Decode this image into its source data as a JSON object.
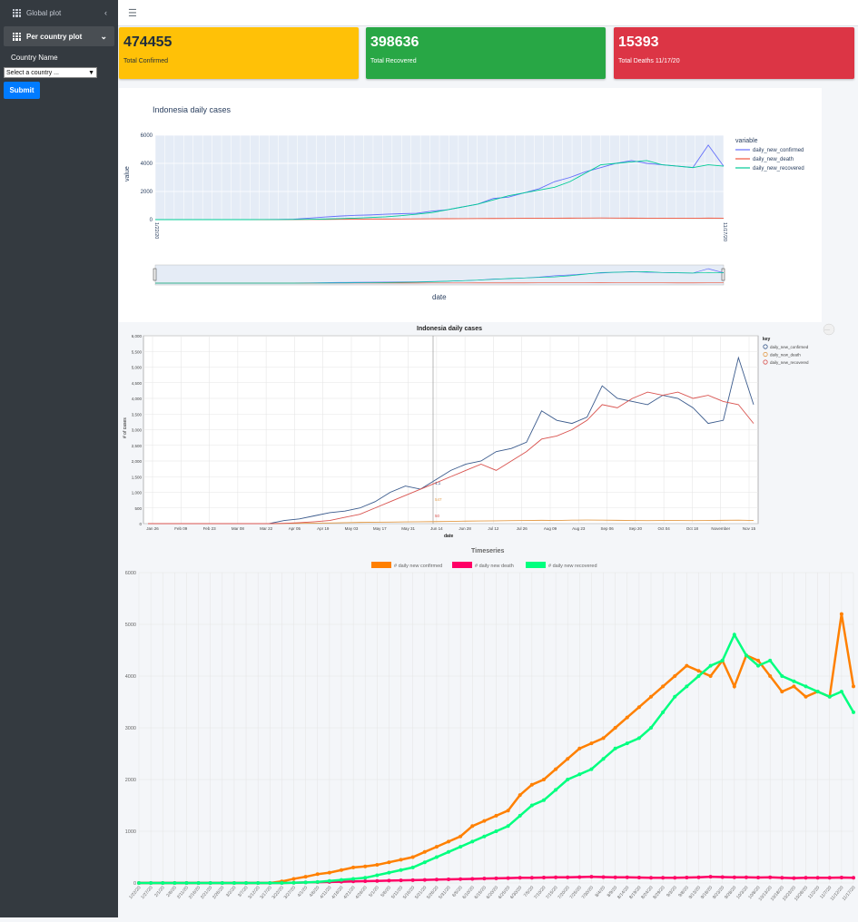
{
  "sidebar": {
    "items": [
      {
        "label": "Global plot",
        "icon": "grid-icon",
        "arrow": "‹"
      },
      {
        "label": "Per country plot",
        "icon": "grid-icon",
        "arrow": "⌄"
      }
    ],
    "country_label": "Country Name",
    "country_select": "Select a country ...",
    "submit": "Submit"
  },
  "topbar": {
    "menu_icon": "hamburger-icon"
  },
  "cards": [
    {
      "value": "474455",
      "label": "Total Confirmed",
      "color": "#ffc107"
    },
    {
      "value": "398636",
      "label": "Total Recovered",
      "color": "#28a745"
    },
    {
      "value": "15393",
      "label": "Total Deaths 11/17/20",
      "color": "#dc3545"
    }
  ],
  "chart_data": [
    {
      "type": "line",
      "title": "Indonesia daily  cases",
      "xlabel": "date",
      "ylabel": "value",
      "ylim": [
        0,
        6000
      ],
      "yticks": [
        "0",
        "2000",
        "4000",
        "6000"
      ],
      "legend_title": "variable",
      "legend_position": "right",
      "grid": true,
      "x_range": [
        "1/22/20",
        "11/17/20"
      ],
      "series": [
        {
          "name": "daily_new_confirmed",
          "color": "#636efa",
          "values": [
            0,
            0,
            0,
            0,
            0,
            0,
            1,
            2,
            10,
            30,
            100,
            180,
            250,
            300,
            330,
            380,
            420,
            450,
            600,
            700,
            900,
            1100,
            1500,
            1600,
            1900,
            2200,
            2700,
            3000,
            3400,
            3700,
            4000,
            4200,
            4000,
            3900,
            3800,
            3700,
            5300,
            3800
          ]
        },
        {
          "name": "daily_new_death",
          "color": "#ef553b",
          "values": [
            0,
            0,
            0,
            0,
            0,
            0,
            0,
            0,
            1,
            5,
            10,
            15,
            20,
            30,
            40,
            40,
            45,
            50,
            60,
            65,
            70,
            75,
            80,
            85,
            95,
            100,
            100,
            105,
            110,
            115,
            110,
            105,
            100,
            100,
            95,
            90,
            110,
            100
          ]
        },
        {
          "name": "daily_new_recovered",
          "color": "#00cc96",
          "values": [
            0,
            0,
            0,
            0,
            0,
            0,
            0,
            1,
            3,
            10,
            20,
            40,
            70,
            100,
            150,
            200,
            280,
            380,
            500,
            700,
            900,
            1100,
            1400,
            1700,
            1900,
            2100,
            2300,
            2700,
            3300,
            3900,
            4000,
            4100,
            4200,
            3900,
            3800,
            3700,
            3900,
            3800
          ]
        }
      ]
    },
    {
      "type": "line",
      "title": "Indonesia daily cases",
      "xlabel": "date",
      "ylabel": "# of cases",
      "ylim": [
        0,
        6000
      ],
      "yticks": [
        "0",
        "500",
        "1,000",
        "1,500",
        "2,000",
        "2,500",
        "3,000",
        "3,500",
        "4,000",
        "4,500",
        "5,000",
        "5,500",
        "6,000"
      ],
      "xticks": [
        "Jan 26",
        "Feb 09",
        "Feb 23",
        "Mar 08",
        "Mar 22",
        "Apr 05",
        "Apr 19",
        "May 03",
        "May 17",
        "May 31",
        "Jun 14",
        "Jun 28",
        "Jul 12",
        "Jul 26",
        "Aug 09",
        "Aug 23",
        "Sep 06",
        "Sep 20",
        "Oct 04",
        "Oct 18",
        "November",
        "Nov 15"
      ],
      "legend_title": "key",
      "legend_position": "right",
      "hover_values": [
        "1,1",
        "547",
        "50"
      ],
      "series": [
        {
          "name": "daily_new_confirmed",
          "color": "#3a5a8c",
          "values": [
            0,
            0,
            0,
            0,
            0,
            0,
            0,
            0,
            1,
            100,
            150,
            250,
            350,
            400,
            500,
            700,
            1000,
            1200,
            1100,
            1400,
            1700,
            1900,
            2000,
            2300,
            2400,
            2600,
            3600,
            3300,
            3200,
            3400,
            4400,
            4000,
            3900,
            3800,
            4100,
            4000,
            3700,
            3200,
            3300,
            5300,
            3800
          ]
        },
        {
          "name": "daily_new_death",
          "color": "#e39c4a",
          "values": [
            0,
            0,
            0,
            0,
            0,
            0,
            0,
            0,
            0,
            5,
            10,
            15,
            20,
            30,
            40,
            45,
            50,
            55,
            60,
            65,
            70,
            80,
            85,
            90,
            95,
            100,
            105,
            100,
            110,
            115,
            110,
            105,
            100,
            95,
            100,
            100,
            95,
            100,
            105,
            110,
            100
          ]
        },
        {
          "name": "daily_new_recovered",
          "color": "#d9534f",
          "values": [
            0,
            0,
            0,
            0,
            0,
            0,
            0,
            0,
            0,
            10,
            30,
            60,
            100,
            200,
            300,
            500,
            700,
            900,
            1100,
            1300,
            1500,
            1700,
            1900,
            1700,
            2000,
            2300,
            2700,
            2800,
            3000,
            3300,
            3800,
            3700,
            4000,
            4200,
            4100,
            4200,
            4000,
            4100,
            3900,
            3800,
            3200
          ]
        }
      ]
    },
    {
      "type": "line",
      "title": "Timeseries",
      "ylim": [
        0,
        6000
      ],
      "yticks": [
        "0",
        "1000",
        "2000",
        "3000",
        "4000",
        "5000",
        "6000"
      ],
      "xticks": [
        "1/22/20",
        "1/27/20",
        "2/1/20",
        "2/6/20",
        "2/11/20",
        "2/16/20",
        "2/21/20",
        "2/26/20",
        "3/2/20",
        "3/7/20",
        "3/12/20",
        "3/17/20",
        "3/22/20",
        "3/27/20",
        "4/1/20",
        "4/6/20",
        "4/11/20",
        "4/16/20",
        "4/21/20",
        "4/26/20",
        "5/1/20",
        "5/6/20",
        "5/11/20",
        "5/16/20",
        "5/21/20",
        "5/26/20",
        "5/31/20",
        "6/5/20",
        "6/10/20",
        "6/15/20",
        "6/20/20",
        "6/25/20",
        "6/30/20",
        "7/5/20",
        "7/10/20",
        "7/15/20",
        "7/20/20",
        "7/25/20",
        "7/30/20",
        "8/4/20",
        "8/9/20",
        "8/14/20",
        "8/19/20",
        "8/24/20",
        "8/29/20",
        "9/3/20",
        "9/8/20",
        "9/13/20",
        "9/18/20",
        "9/23/20",
        "9/28/20",
        "10/3/20",
        "10/8/20",
        "10/13/20",
        "10/18/20",
        "10/23/20",
        "10/28/20",
        "11/2/20",
        "11/7/20",
        "11/12/20",
        "11/17/20"
      ],
      "legend_position": "top",
      "series": [
        {
          "name": "# daily new confirmed",
          "color": "#ff8000",
          "values": [
            0,
            0,
            0,
            0,
            0,
            0,
            0,
            0,
            0,
            0,
            0,
            0,
            30,
            80,
            120,
            170,
            200,
            250,
            300,
            320,
            350,
            400,
            450,
            500,
            600,
            700,
            800,
            900,
            1100,
            1200,
            1300,
            1400,
            1700,
            1900,
            2000,
            2200,
            2400,
            2600,
            2700,
            2800,
            3000,
            3200,
            3400,
            3600,
            3800,
            4000,
            4200,
            4100,
            4000,
            4300,
            3800,
            4400,
            4300,
            4000,
            3700,
            3800,
            3600,
            3700,
            3600,
            5200,
            3800
          ]
        },
        {
          "name": "# daily new death",
          "color": "#ff0066",
          "values": [
            0,
            0,
            0,
            0,
            0,
            0,
            0,
            0,
            0,
            0,
            0,
            0,
            0,
            5,
            10,
            15,
            20,
            25,
            30,
            35,
            40,
            45,
            50,
            55,
            60,
            65,
            70,
            75,
            80,
            85,
            90,
            95,
            100,
            100,
            105,
            110,
            110,
            115,
            120,
            115,
            110,
            110,
            105,
            100,
            100,
            100,
            105,
            110,
            120,
            115,
            110,
            110,
            105,
            110,
            100,
            95,
            100,
            100,
            100,
            105,
            100
          ]
        },
        {
          "name": "# daily new recovered",
          "color": "#00ff7f",
          "values": [
            0,
            0,
            0,
            0,
            0,
            0,
            0,
            0,
            0,
            0,
            0,
            0,
            0,
            5,
            10,
            20,
            40,
            60,
            80,
            100,
            150,
            200,
            250,
            300,
            400,
            500,
            600,
            700,
            800,
            900,
            1000,
            1100,
            1300,
            1500,
            1600,
            1800,
            2000,
            2100,
            2200,
            2400,
            2600,
            2700,
            2800,
            3000,
            3300,
            3600,
            3800,
            4000,
            4200,
            4300,
            4800,
            4400,
            4200,
            4300,
            4000,
            3900,
            3800,
            3700,
            3600,
            3700,
            3300
          ]
        }
      ]
    }
  ]
}
